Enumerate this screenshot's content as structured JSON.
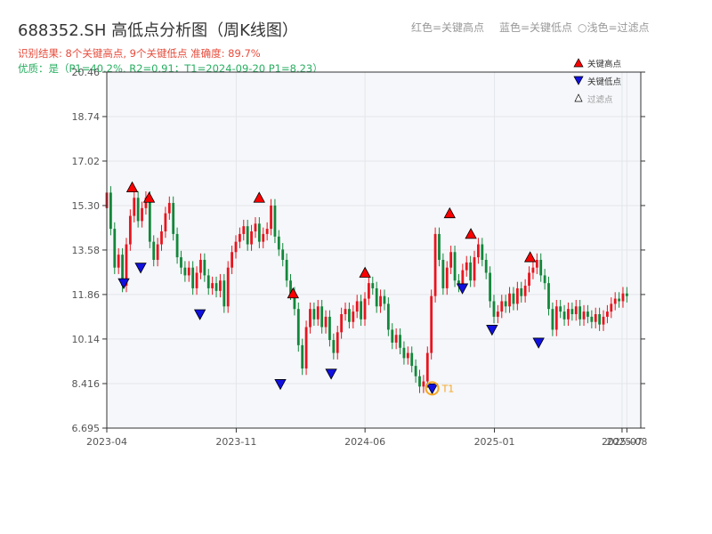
{
  "header": {
    "title": "688352.SH 高低点分析图（周K线图）",
    "result": "识别结果: 8个关键高点, 9个关键低点  准确度: 89.7%",
    "quality": "优质：是（P1=40.2%, R2=0.91；T1=2024-09-20 P1=8.23）",
    "legend_red": "红色=关键高点",
    "legend_blue": "蓝色=关键低点",
    "legend_gray": "○浅色=过滤点"
  },
  "legend": {
    "high": "关键高点",
    "low": "关键低点",
    "filtered": "过滤点"
  },
  "colors": {
    "up": "#e8141e",
    "down": "#13873b",
    "high_marker": "#ff0000",
    "low_marker": "#1010e0",
    "t1_ring": "#f5a623",
    "plot_bg": "#f5f7fa"
  },
  "chart_data": {
    "type": "candlestick",
    "x_start": "2023-04-01",
    "x_end": "2025-08-31",
    "ylim": [
      6.695,
      20.46
    ],
    "y_ticks": [
      "20.46",
      "18.74",
      "17.02",
      "15.30",
      "13.58",
      "11.86",
      "10.14",
      "8.416",
      "6.695"
    ],
    "x_ticks": [
      {
        "date": "2023-04-01",
        "label": "2023-04"
      },
      {
        "date": "2023-11-01",
        "label": "2023-11"
      },
      {
        "date": "2024-06-01",
        "label": "2024-06"
      },
      {
        "date": "2025-01-01",
        "label": "2025-01"
      },
      {
        "date": "2025-07-31",
        "label": "2025-07"
      },
      {
        "date": "2025-08-08",
        "label": "2025-08"
      }
    ],
    "closes": [
      15.8,
      14.4,
      12.9,
      13.4,
      12.2,
      13.8,
      14.9,
      15.6,
      14.7,
      15.2,
      15.6,
      13.9,
      13.2,
      13.8,
      14.3,
      15.0,
      15.4,
      14.2,
      13.3,
      12.9,
      12.6,
      12.9,
      12.1,
      12.7,
      13.2,
      12.6,
      12.1,
      12.3,
      12.0,
      12.4,
      11.4,
      12.9,
      13.5,
      13.9,
      14.2,
      14.5,
      13.8,
      14.3,
      14.6,
      13.9,
      14.2,
      14.4,
      15.3,
      14.1,
      13.6,
      13.2,
      12.4,
      11.9,
      11.3,
      9.9,
      9.0,
      10.6,
      11.3,
      10.9,
      11.4,
      10.6,
      11.0,
      10.1,
      9.6,
      10.4,
      11.1,
      11.3,
      10.8,
      11.2,
      11.6,
      10.9,
      11.7,
      12.3,
      12.1,
      11.4,
      11.8,
      11.5,
      10.5,
      10.0,
      10.3,
      9.8,
      9.4,
      9.6,
      9.1,
      8.7,
      8.3,
      8.5,
      9.6,
      11.8,
      14.2,
      13.2,
      12.1,
      12.9,
      13.5,
      12.4,
      12.2,
      12.8,
      13.1,
      12.4,
      13.3,
      13.8,
      13.2,
      12.7,
      11.6,
      11.0,
      11.2,
      11.6,
      11.4,
      11.9,
      11.5,
      12.1,
      11.8,
      12.2,
      12.7,
      12.9,
      13.2,
      12.6,
      12.3,
      11.3,
      10.5,
      11.4,
      11.2,
      10.9,
      11.3,
      11.1,
      11.4,
      10.9,
      11.2,
      11.0,
      10.8,
      11.1,
      10.7,
      11.0,
      11.2,
      11.5,
      11.7,
      11.6,
      11.9,
      11.8
    ],
    "key_highs": [
      {
        "date": "2023-05-13",
        "value": 16.0
      },
      {
        "date": "2023-06-10",
        "value": 15.6
      },
      {
        "date": "2023-12-09",
        "value": 15.6
      },
      {
        "date": "2024-02-03",
        "value": 11.9
      },
      {
        "date": "2024-06-01",
        "value": 12.7
      },
      {
        "date": "2024-10-19",
        "value": 15.0
      },
      {
        "date": "2024-11-23",
        "value": 14.2
      },
      {
        "date": "2025-03-01",
        "value": 13.3
      }
    ],
    "key_lows": [
      {
        "date": "2023-04-29",
        "value": 12.3
      },
      {
        "date": "2023-05-27",
        "value": 12.9
      },
      {
        "date": "2023-09-02",
        "value": 11.1
      },
      {
        "date": "2024-01-13",
        "value": 8.4
      },
      {
        "date": "2024-04-06",
        "value": 8.8
      },
      {
        "date": "2024-09-20",
        "value": 8.23
      },
      {
        "date": "2024-11-09",
        "value": 12.1
      },
      {
        "date": "2024-12-28",
        "value": 10.5
      },
      {
        "date": "2025-03-15",
        "value": 10.0
      }
    ],
    "t1": {
      "date": "2024-09-20",
      "value": 8.23,
      "label": "T1"
    }
  }
}
